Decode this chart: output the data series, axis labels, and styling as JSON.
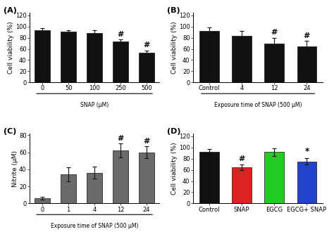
{
  "panelA": {
    "categories": [
      "0",
      "50",
      "100",
      "250",
      "500"
    ],
    "values": [
      93,
      91,
      88,
      73,
      53
    ],
    "errors": [
      4,
      3,
      5,
      4,
      4
    ],
    "sig_hash": [
      false,
      false,
      false,
      true,
      true
    ],
    "bar_color": "#111111",
    "ylabel": "Cell viability (%)",
    "xlabel": "SNAP (μM)",
    "ylim": [
      0,
      125
    ],
    "yticks": [
      0,
      20,
      40,
      60,
      80,
      100,
      120
    ],
    "title": "(A)"
  },
  "panelB": {
    "categories": [
      "Control",
      "4",
      "12",
      "24"
    ],
    "values": [
      92,
      83,
      70,
      65
    ],
    "errors": [
      7,
      9,
      10,
      9
    ],
    "sig_hash": [
      false,
      false,
      true,
      true
    ],
    "bar_color": "#111111",
    "ylabel": "Cell viability (%)",
    "xlabel": "Exposure time of SNAP (500 μM)",
    "ylim": [
      0,
      125
    ],
    "yticks": [
      0,
      20,
      40,
      60,
      80,
      100,
      120
    ],
    "title": "(B)"
  },
  "panelC": {
    "categories": [
      "0",
      "1",
      "4",
      "12",
      "24"
    ],
    "values": [
      6,
      34,
      36,
      62,
      60
    ],
    "errors": [
      2,
      8,
      7,
      8,
      7
    ],
    "sig_hash": [
      false,
      false,
      false,
      true,
      true
    ],
    "bar_color": "#6a6a6a",
    "ylabel": "Nitrite (μM)",
    "xlabel": "Exposure time of SNAP (500 μM)",
    "ylim": [
      0,
      82
    ],
    "yticks": [
      0,
      20,
      40,
      60,
      80
    ],
    "title": "(C)"
  },
  "panelD": {
    "categories": [
      "Control",
      "SNAP",
      "EGCG",
      "EGCG+ SNAP"
    ],
    "values": [
      92,
      65,
      92,
      75
    ],
    "errors": [
      5,
      5,
      7,
      6
    ],
    "sig_hash": [
      false,
      true,
      false,
      false
    ],
    "sig_star": [
      false,
      false,
      false,
      true
    ],
    "bar_colors": [
      "#111111",
      "#dd2222",
      "#22cc22",
      "#2244cc"
    ],
    "ylabel": "Cell viability (%)",
    "ylim": [
      0,
      125
    ],
    "yticks": [
      0,
      20,
      40,
      60,
      80,
      100,
      120
    ],
    "title": "(D)"
  },
  "error_color": "#111111",
  "font_size": 6.5,
  "title_font_size": 8
}
